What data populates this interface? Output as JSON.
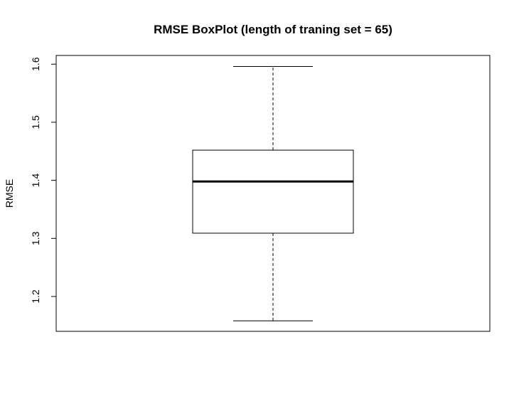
{
  "chart_data": {
    "type": "boxplot",
    "title": "RMSE BoxPlot (length of traning set = 65)",
    "xlabel": "",
    "ylabel": "RMSE",
    "ylim": [
      1.14,
      1.615
    ],
    "yticks": [
      1.2,
      1.3,
      1.4,
      1.5,
      1.6
    ],
    "ytick_labels": [
      "1.2",
      "1.3",
      "1.4",
      "1.5",
      "1.6"
    ],
    "grid": false,
    "legend": "none",
    "series": [
      {
        "whisker_low": 1.158,
        "q1": 1.309,
        "median": 1.398,
        "q3": 1.452,
        "whisker_high": 1.596
      }
    ],
    "colors": {
      "stroke": "#000000",
      "background": "#ffffff"
    }
  }
}
